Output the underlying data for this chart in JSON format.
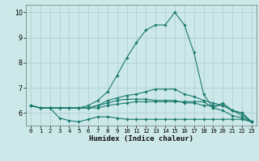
{
  "xlabel": "Humidex (Indice chaleur)",
  "x_values": [
    0,
    1,
    2,
    3,
    4,
    5,
    6,
    7,
    8,
    9,
    10,
    11,
    12,
    13,
    14,
    15,
    16,
    17,
    18,
    19,
    20,
    21,
    22,
    23
  ],
  "lines": [
    [
      6.3,
      6.2,
      6.2,
      5.8,
      5.7,
      5.65,
      5.75,
      5.85,
      5.85,
      5.8,
      5.75,
      5.75,
      5.75,
      5.75,
      5.75,
      5.75,
      5.75,
      5.75,
      5.75,
      5.75,
      5.75,
      5.75,
      5.75,
      5.65
    ],
    [
      6.3,
      6.2,
      6.2,
      6.2,
      6.2,
      6.2,
      6.2,
      6.2,
      6.3,
      6.35,
      6.4,
      6.45,
      6.45,
      6.45,
      6.45,
      6.45,
      6.45,
      6.45,
      6.45,
      6.2,
      6.1,
      5.9,
      5.8,
      5.65
    ],
    [
      6.3,
      6.2,
      6.2,
      6.2,
      6.2,
      6.2,
      6.2,
      6.3,
      6.4,
      6.5,
      6.55,
      6.55,
      6.55,
      6.5,
      6.5,
      6.5,
      6.4,
      6.4,
      6.3,
      6.3,
      6.3,
      6.1,
      6.0,
      5.65
    ],
    [
      6.3,
      6.2,
      6.2,
      6.2,
      6.2,
      6.2,
      6.2,
      6.3,
      6.5,
      6.6,
      6.7,
      6.75,
      6.85,
      6.95,
      6.95,
      6.95,
      6.75,
      6.65,
      6.5,
      6.4,
      6.3,
      6.1,
      6.0,
      5.65
    ],
    [
      6.3,
      6.2,
      6.2,
      6.2,
      6.2,
      6.2,
      6.3,
      6.5,
      6.85,
      7.5,
      8.2,
      8.8,
      9.3,
      9.5,
      9.5,
      10.0,
      9.5,
      8.4,
      6.75,
      6.2,
      6.4,
      6.1,
      5.9,
      5.65
    ]
  ],
  "line_color": "#1a7a6e",
  "bg_color": "#cce8e8",
  "grid_color": "#aacccc",
  "ylim": [
    5.5,
    10.3
  ],
  "xlim": [
    -0.5,
    23.5
  ],
  "yticks": [
    6,
    7,
    8,
    9,
    10
  ],
  "xticks": [
    0,
    1,
    2,
    3,
    4,
    5,
    6,
    7,
    8,
    9,
    10,
    11,
    12,
    13,
    14,
    15,
    16,
    17,
    18,
    19,
    20,
    21,
    22,
    23
  ]
}
